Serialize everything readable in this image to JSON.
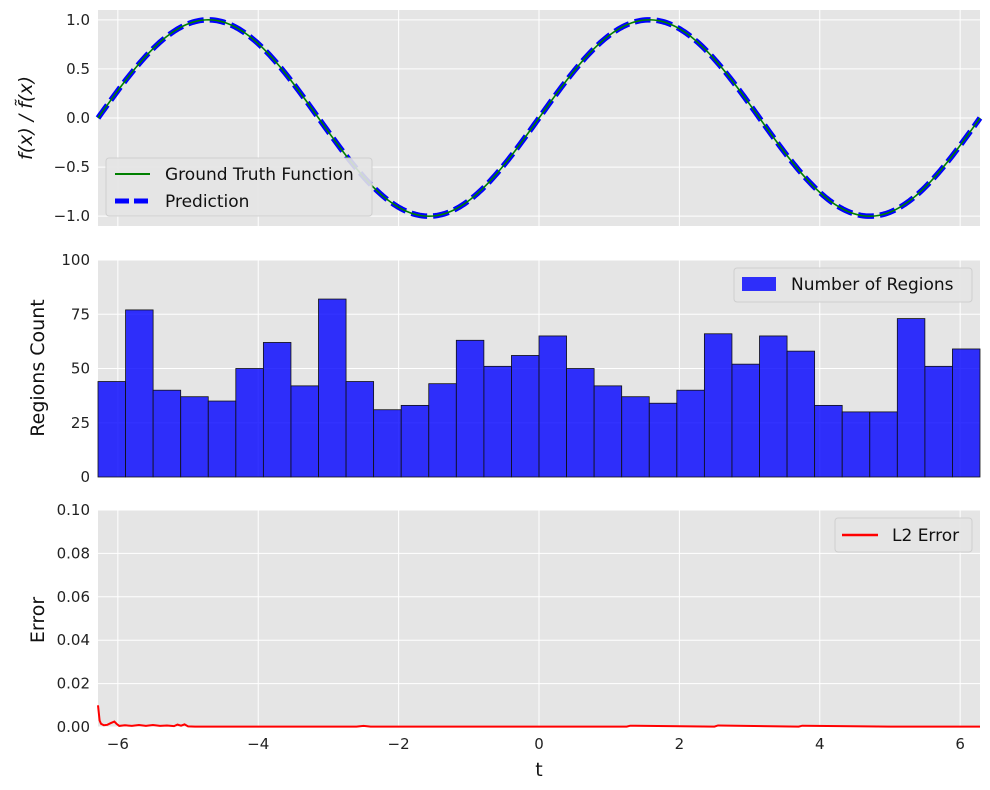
{
  "chart_data": [
    {
      "type": "line",
      "xlim": [
        -6.283,
        6.283
      ],
      "ylim": [
        -1.1,
        1.1
      ],
      "yticks": [
        -1.0,
        -0.5,
        0.0,
        0.5,
        1.0
      ],
      "ytick_labels": [
        "−1.0",
        "−0.5",
        "0.0",
        "0.5",
        "1.0"
      ],
      "ylabel_main": "f(x) / ",
      "ylabel_tilde": "f̃(x)",
      "grid": true,
      "legend_placement": "lower-left",
      "series": [
        {
          "name": "Ground Truth Function",
          "function": "sin(x)",
          "color": "#008000",
          "style": "solid"
        },
        {
          "name": "Prediction",
          "function": "sin(x)",
          "color": "#0000ff",
          "style": "dashed"
        }
      ]
    },
    {
      "type": "bar",
      "xlim": [
        -6.283,
        6.283
      ],
      "ylim": [
        0,
        100
      ],
      "yticks": [
        0,
        25,
        50,
        75,
        100
      ],
      "ytick_labels": [
        "0",
        "25",
        "50",
        "75",
        "100"
      ],
      "ylabel": "Regions Count",
      "grid": true,
      "legend_placement": "upper-right",
      "bar_color": "#0000ff",
      "series": [
        {
          "name": "Number of Regions",
          "values": [
            44,
            77,
            40,
            37,
            35,
            50,
            62,
            42,
            82,
            44,
            31,
            33,
            43,
            63,
            51,
            56,
            65,
            50,
            42,
            37,
            34,
            40,
            66,
            52,
            65,
            58,
            33,
            30,
            30,
            73,
            51,
            59
          ]
        }
      ]
    },
    {
      "type": "line",
      "xlim": [
        -6.283,
        6.283
      ],
      "ylim": [
        0,
        0.1
      ],
      "xticks": [
        -6,
        -4,
        -2,
        0,
        2,
        4,
        6
      ],
      "xtick_labels": [
        "−6",
        "−4",
        "−2",
        "0",
        "2",
        "4",
        "6"
      ],
      "yticks": [
        0,
        0.02,
        0.04,
        0.06,
        0.08,
        0.1
      ],
      "ytick_labels": [
        "0.00",
        "0.02",
        "0.04",
        "0.06",
        "0.08",
        "0.10"
      ],
      "xlabel": "t",
      "ylabel": "Error",
      "grid": true,
      "legend_placement": "upper-right",
      "series": [
        {
          "name": "L2 Error",
          "color": "#ff0000",
          "x": [
            -6.283,
            -6.26,
            -6.24,
            -6.2,
            -6.15,
            -6.1,
            -6.05,
            -6.02,
            -5.98,
            -5.9,
            -5.8,
            -5.7,
            -5.6,
            -5.5,
            -5.4,
            -5.3,
            -5.2,
            -5.15,
            -5.1,
            -5.05,
            -5.0,
            -4.9,
            -4.0,
            -2.6,
            -2.5,
            -2.4,
            -1.2,
            0.0,
            1.25,
            1.3,
            2.5,
            2.55,
            3.7,
            3.75,
            5.0,
            6.283
          ],
          "y": [
            0.01,
            0.003,
            0.0015,
            0.0008,
            0.001,
            0.0018,
            0.0025,
            0.0015,
            0.0005,
            0.0008,
            0.0005,
            0.0009,
            0.0005,
            0.0009,
            0.0005,
            0.0007,
            0.0004,
            0.0011,
            0.0006,
            0.0012,
            0.0003,
            0.0002,
            0.0002,
            0.0002,
            0.0005,
            0.0002,
            0.0002,
            0.0002,
            0.0002,
            0.0006,
            0.0002,
            0.0007,
            0.0002,
            0.0006,
            0.0002,
            0.0002
          ]
        }
      ]
    }
  ]
}
